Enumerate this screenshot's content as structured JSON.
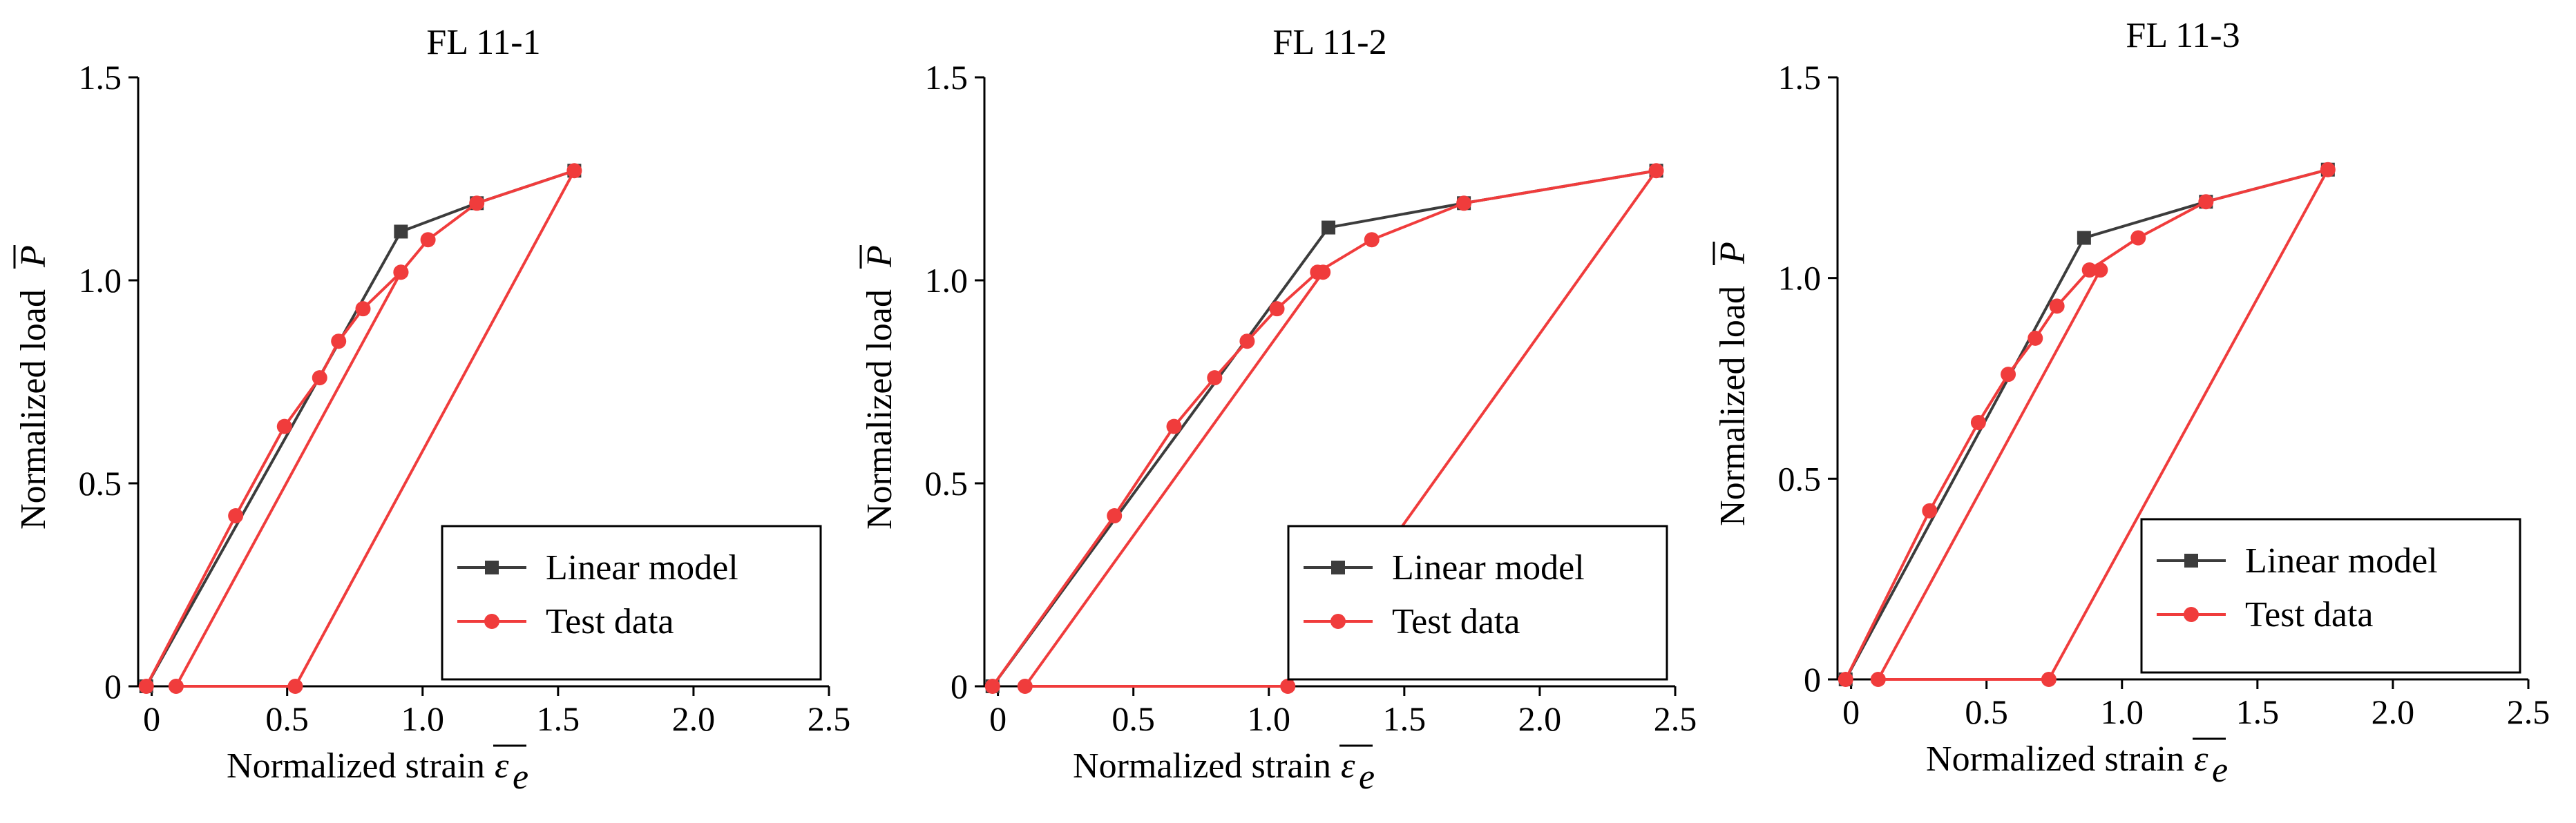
{
  "chart_data": [
    {
      "type": "line",
      "title": "FL 11-1",
      "xlabel": "Normalized strain",
      "xlabel_symbol": "ε",
      "xlabel_subscript": "e",
      "ylabel": "Normalized load",
      "ylabel_symbol": "P",
      "xlim": [
        -0.05,
        2.5
      ],
      "ylim": [
        0,
        1.5
      ],
      "xticks": [
        "0",
        "0.5",
        "1.0",
        "1.5",
        "2.0",
        "2.5"
      ],
      "xtick_values": [
        0,
        0.5,
        1.0,
        1.5,
        2.0,
        2.5
      ],
      "yticks": [
        "0",
        "0.5",
        "1.0",
        "1.5"
      ],
      "ytick_values": [
        0,
        0.5,
        1.0,
        1.5
      ],
      "series": [
        {
          "name": "Linear model",
          "color": "#3c3c3c",
          "marker": "square",
          "x": [
            -0.02,
            0.92,
            1.2,
            1.56
          ],
          "y": [
            0,
            1.12,
            1.19,
            1.27
          ]
        },
        {
          "name": "Test data",
          "color": "#f03c3c",
          "marker": "circle",
          "x": [
            -0.02,
            0.31,
            0.49,
            0.62,
            0.69,
            0.78,
            0.92,
            1.02,
            1.2,
            1.56,
            0.53,
            0.09,
            0.92
          ],
          "y": [
            0,
            0.42,
            0.64,
            0.76,
            0.85,
            0.93,
            1.02,
            1.1,
            1.19,
            1.27,
            0,
            0,
            1.02
          ]
        }
      ]
    },
    {
      "type": "line",
      "title": "FL 11-2",
      "xlabel": "Normalized strain",
      "xlabel_symbol": "ε",
      "xlabel_subscript": "e",
      "ylabel": "Normalized load",
      "ylabel_symbol": "P",
      "xlim": [
        -0.05,
        2.5
      ],
      "ylim": [
        0,
        1.5
      ],
      "xticks": [
        "0",
        "0.5",
        "1.0",
        "1.5",
        "2.0",
        "2.5"
      ],
      "xtick_values": [
        0,
        0.5,
        1.0,
        1.5,
        2.0,
        2.5
      ],
      "yticks": [
        "0",
        "0.5",
        "1.0",
        "1.5"
      ],
      "ytick_values": [
        0,
        0.5,
        1.0,
        1.5
      ],
      "series": [
        {
          "name": "Linear model",
          "color": "#3c3c3c",
          "marker": "square",
          "x": [
            -0.02,
            1.22,
            1.72,
            2.43
          ],
          "y": [
            0,
            1.13,
            1.19,
            1.27
          ]
        },
        {
          "name": "Test data",
          "color": "#f03c3c",
          "marker": "circle",
          "x": [
            -0.02,
            0.43,
            0.65,
            0.8,
            0.92,
            1.03,
            1.18,
            1.38,
            1.72,
            2.43,
            1.07,
            0.1,
            1.2
          ],
          "y": [
            0,
            0.42,
            0.64,
            0.76,
            0.85,
            0.93,
            1.02,
            1.1,
            1.19,
            1.27,
            0,
            0,
            1.02
          ]
        }
      ]
    },
    {
      "type": "line",
      "title": "FL 11-3",
      "xlabel": "Normalized strain",
      "xlabel_symbol": "ε",
      "xlabel_subscript": "e",
      "ylabel": "Normalized load",
      "ylabel_symbol": "P",
      "xlim": [
        -0.05,
        2.5
      ],
      "ylim": [
        0,
        1.5
      ],
      "xticks": [
        "0",
        "0.5",
        "1.0",
        "1.5",
        "2.0",
        "2.5"
      ],
      "xtick_values": [
        0,
        0.5,
        1.0,
        1.5,
        2.0,
        2.5
      ],
      "yticks": [
        "0",
        "0.5",
        "1.0",
        "1.5"
      ],
      "ytick_values": [
        0,
        0.5,
        1.0,
        1.5
      ],
      "series": [
        {
          "name": "Linear model",
          "color": "#3c3c3c",
          "marker": "square",
          "x": [
            -0.02,
            0.86,
            1.31,
            1.76
          ],
          "y": [
            0,
            1.1,
            1.19,
            1.27
          ]
        },
        {
          "name": "Test data",
          "color": "#f03c3c",
          "marker": "circle",
          "x": [
            -0.02,
            0.29,
            0.47,
            0.58,
            0.68,
            0.76,
            0.88,
            1.06,
            1.31,
            1.76,
            0.73,
            0.1,
            0.92
          ],
          "y": [
            0,
            0.42,
            0.64,
            0.76,
            0.85,
            0.93,
            1.02,
            1.1,
            1.19,
            1.27,
            0,
            0,
            1.02
          ]
        }
      ]
    }
  ]
}
